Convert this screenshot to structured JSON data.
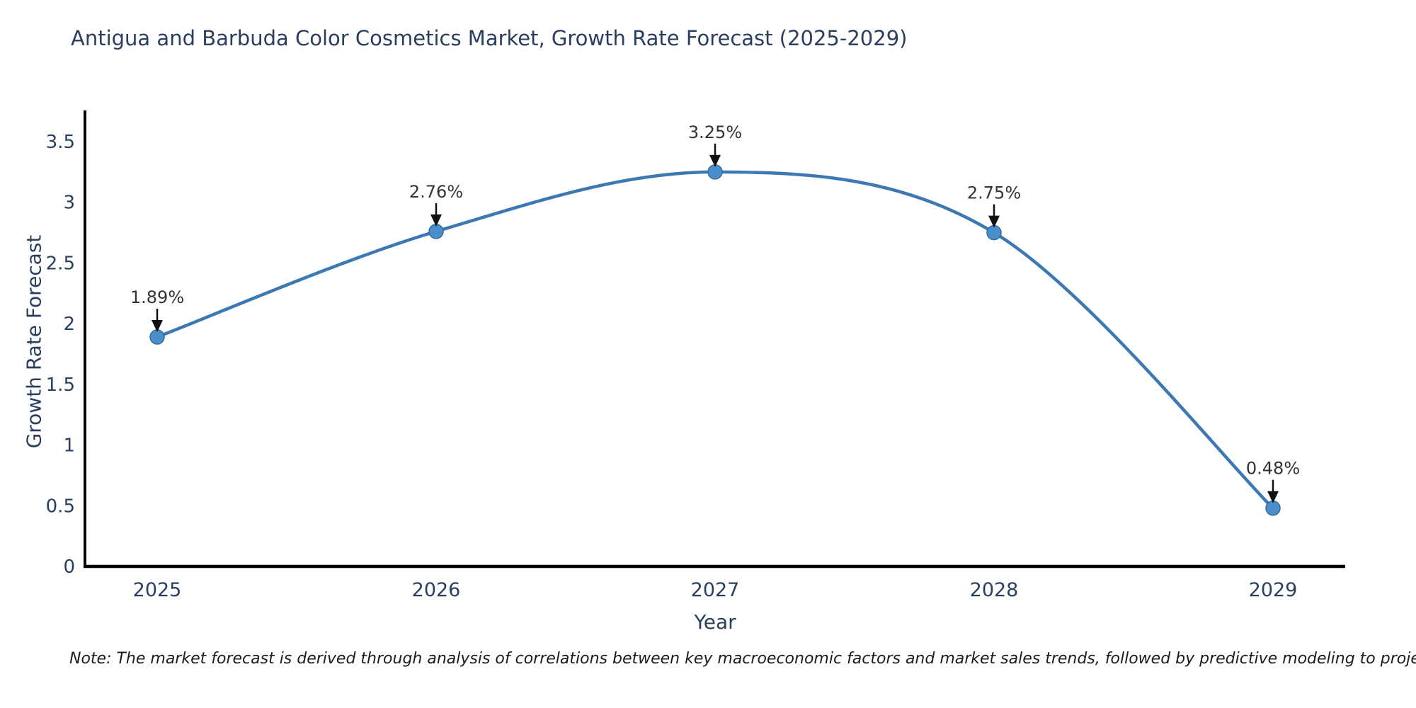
{
  "chart_data": {
    "type": "line",
    "title": "Antigua and Barbuda Color Cosmetics Market, Growth Rate Forecast (2025-2029)",
    "xlabel": "Year",
    "ylabel": "Growth Rate Forecast",
    "categories": [
      "2025",
      "2026",
      "2027",
      "2028",
      "2029"
    ],
    "series": [
      {
        "name": "Growth Rate Forecast",
        "values": [
          1.89,
          2.76,
          3.25,
          2.75,
          0.48
        ],
        "point_labels": [
          "1.89%",
          "2.76%",
          "3.25%",
          "2.75%",
          "0.48%"
        ]
      }
    ],
    "ylim": [
      0,
      3.5
    ],
    "yticks": [
      0,
      0.5,
      1,
      1.5,
      2,
      2.5,
      3,
      3.5
    ],
    "ytick_labels": [
      "0",
      "0.5",
      "1",
      "1.5",
      "2",
      "2.5",
      "3",
      "3.5"
    ],
    "grid": false,
    "legend": false,
    "line_shape": "spline",
    "annotation_style": "down-arrow",
    "note": "Note: The market forecast is derived through analysis of correlations between key macroeconomic factors and market sales trends, followed by predictive modeling to project future sales",
    "colors": {
      "line": "#3c78b2",
      "marker_fill": "#4a8fc9",
      "marker_edge": "#356d9e",
      "axis_line": "#000000",
      "tick_text": "#2a3f5f",
      "title_text": "#2a3f5f",
      "annotation_text": "#333333",
      "annotation_arrow": "#111111",
      "background": "#ffffff"
    }
  }
}
